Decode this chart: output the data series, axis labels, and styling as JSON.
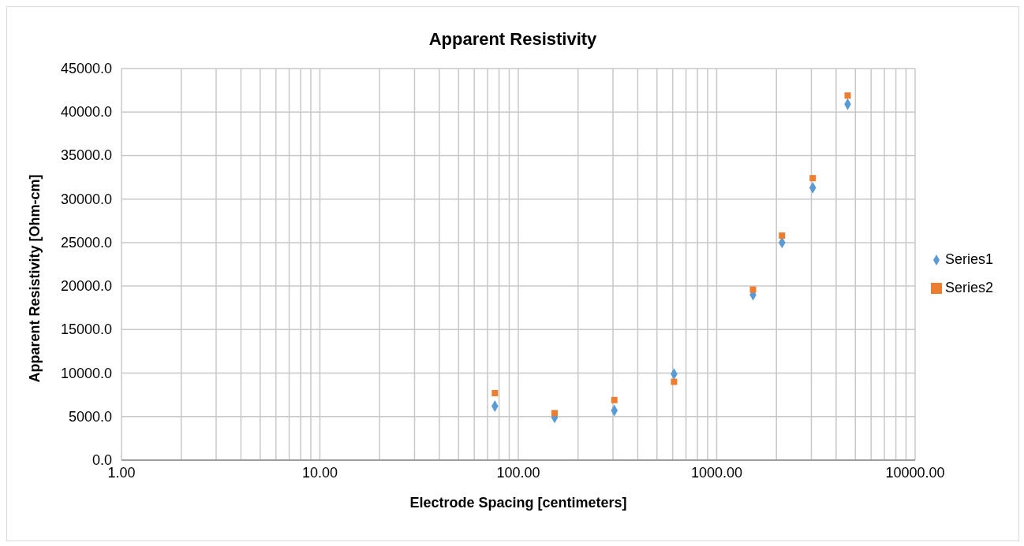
{
  "chart_data": {
    "type": "scatter",
    "title": "Apparent Resistivity",
    "xlabel": "Electrode Spacing [centimeters]",
    "ylabel": "Apparent Resistivity [Ohm-cm]",
    "x": [
      76.2,
      152.4,
      304.8,
      609.6,
      1524,
      2133.6,
      3048,
      4572
    ],
    "series": [
      {
        "name": "Series1",
        "color": "#5b9bd5",
        "marker": "diamond",
        "values": [
          6200,
          4900,
          5700,
          9900,
          19000,
          25000,
          31300,
          40900
        ]
      },
      {
        "name": "Series2",
        "color": "#ed7d31",
        "marker": "square",
        "values": [
          7700,
          5400,
          6900,
          9000,
          19600,
          25800,
          32400,
          41900
        ]
      }
    ],
    "log": "x",
    "xlim": [
      1,
      10000
    ],
    "xticks": [
      {
        "value": 1,
        "label": "1.00"
      },
      {
        "value": 2,
        "label": null
      },
      {
        "value": 3,
        "label": null
      },
      {
        "value": 4,
        "label": null
      },
      {
        "value": 5,
        "label": null
      },
      {
        "value": 6,
        "label": null
      },
      {
        "value": 7,
        "label": null
      },
      {
        "value": 8,
        "label": null
      },
      {
        "value": 9,
        "label": null
      },
      {
        "value": 10,
        "label": "10.00"
      },
      {
        "value": 20,
        "label": null
      },
      {
        "value": 30,
        "label": null
      },
      {
        "value": 40,
        "label": null
      },
      {
        "value": 50,
        "label": null
      },
      {
        "value": 60,
        "label": null
      },
      {
        "value": 70,
        "label": null
      },
      {
        "value": 80,
        "label": null
      },
      {
        "value": 90,
        "label": null
      },
      {
        "value": 100,
        "label": "100.00"
      },
      {
        "value": 200,
        "label": null
      },
      {
        "value": 300,
        "label": null
      },
      {
        "value": 400,
        "label": null
      },
      {
        "value": 500,
        "label": null
      },
      {
        "value": 600,
        "label": null
      },
      {
        "value": 700,
        "label": null
      },
      {
        "value": 800,
        "label": null
      },
      {
        "value": 900,
        "label": null
      },
      {
        "value": 1000,
        "label": "1000.00"
      },
      {
        "value": 2000,
        "label": null
      },
      {
        "value": 3000,
        "label": null
      },
      {
        "value": 4000,
        "label": null
      },
      {
        "value": 5000,
        "label": null
      },
      {
        "value": 6000,
        "label": null
      },
      {
        "value": 7000,
        "label": null
      },
      {
        "value": 8000,
        "label": null
      },
      {
        "value": 9000,
        "label": null
      },
      {
        "value": 10000,
        "label": "10000.00"
      }
    ],
    "ylim": [
      0,
      45000
    ],
    "yticks": [
      {
        "value": 0,
        "label": "0.0"
      },
      {
        "value": 5000,
        "label": "5000.0"
      },
      {
        "value": 10000,
        "label": "10000.0"
      },
      {
        "value": 15000,
        "label": "15000.0"
      },
      {
        "value": 20000,
        "label": "20000.0"
      },
      {
        "value": 25000,
        "label": "25000.0"
      },
      {
        "value": 30000,
        "label": "30000.0"
      },
      {
        "value": 35000,
        "label": "35000.0"
      },
      {
        "value": 40000,
        "label": "40000.0"
      },
      {
        "value": 45000,
        "label": "45000.0"
      }
    ],
    "grid": true,
    "legend": "right"
  }
}
